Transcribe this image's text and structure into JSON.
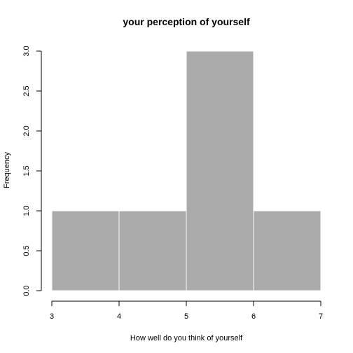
{
  "chart_data": {
    "type": "bar",
    "title": "your perception of yourself",
    "xlabel": "How well do you think of yourself",
    "ylabel": "Frequency",
    "bins": [
      {
        "from": 3,
        "to": 4,
        "count": 1
      },
      {
        "from": 4,
        "to": 5,
        "count": 1
      },
      {
        "from": 5,
        "to": 6,
        "count": 3
      },
      {
        "from": 6,
        "to": 7,
        "count": 1
      }
    ],
    "x_ticks": [
      "3",
      "4",
      "5",
      "6",
      "7"
    ],
    "y_ticks": [
      "0.0",
      "0.5",
      "1.0",
      "1.5",
      "2.0",
      "2.5",
      "3.0"
    ],
    "xlim": [
      3,
      7
    ],
    "ylim": [
      0,
      3
    ],
    "grid": false,
    "colors": {
      "bar_fill": "#aaaaaa",
      "bar_border": "#ffffff",
      "axis": "#000000"
    }
  }
}
